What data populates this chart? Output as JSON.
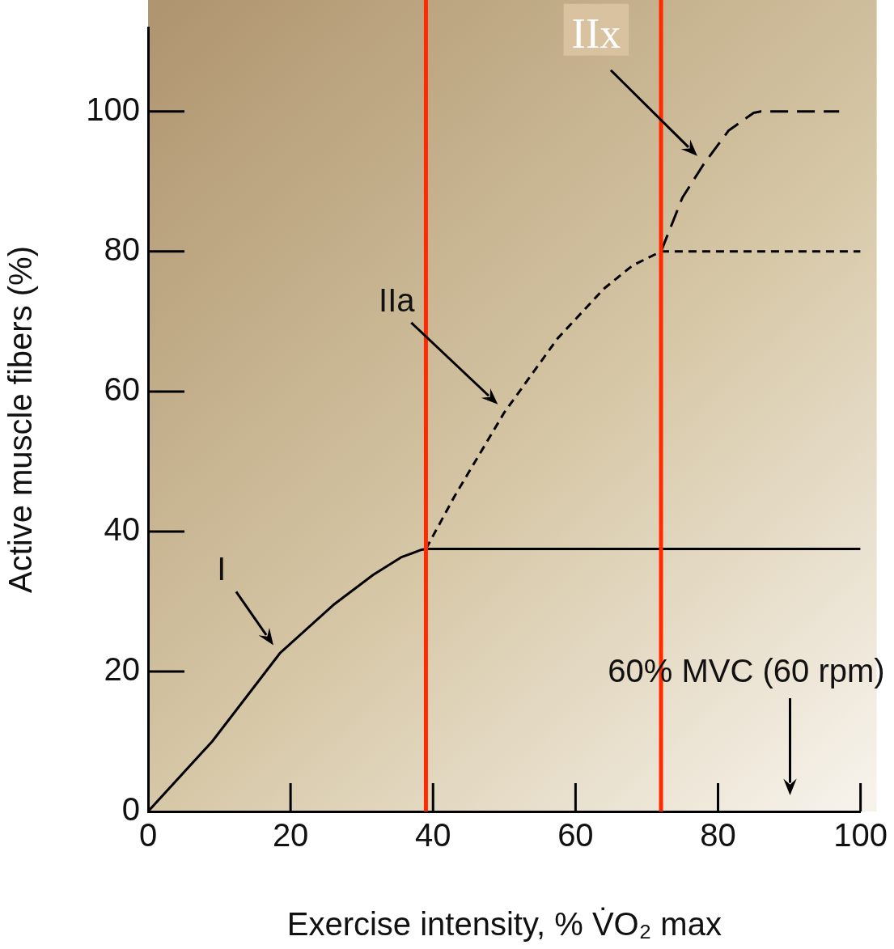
{
  "chart_data": {
    "type": "line",
    "xlabel": "Exercise intensity, % V̇O₂ max",
    "ylabel": "Active muscle fibers (%)",
    "xlim": [
      0,
      100
    ],
    "ylim": [
      0,
      112
    ],
    "xticks": [
      0,
      20,
      40,
      60,
      80,
      100
    ],
    "yticks": [
      0,
      20,
      40,
      60,
      80,
      100
    ],
    "grid": false,
    "legend": false,
    "marker": "none",
    "series": [
      {
        "name": "I",
        "color": "#000000",
        "line_style": "solid",
        "x": [
          0,
          9,
          18.5,
          26,
          31.6,
          35.5,
          38.4,
          39,
          100
        ],
        "values": [
          0,
          10,
          22.6,
          29.5,
          33.8,
          36.3,
          37.4,
          37.5,
          37.5
        ]
      },
      {
        "name": "IIa",
        "color": "#000000",
        "line_style": "dashed",
        "x": [
          39,
          43,
          50,
          57.5,
          64,
          68,
          72,
          100
        ],
        "values": [
          37.5,
          45,
          57,
          67.6,
          74.7,
          78,
          80,
          80
        ]
      },
      {
        "name": "IIx",
        "color": "#000000",
        "line_style": "dashed",
        "x": [
          72,
          75,
          78,
          81.5,
          85,
          86,
          97
        ],
        "values": [
          80,
          87.7,
          92.5,
          97.3,
          99.8,
          100,
          100
        ]
      }
    ],
    "ref_lines": [
      {
        "axis": "x",
        "value": 39,
        "color": "#ff2a00"
      },
      {
        "axis": "x",
        "value": 72,
        "color": "#ff2a00"
      }
    ],
    "annotations": [
      "60% MVC (60 rpm)"
    ]
  }
}
